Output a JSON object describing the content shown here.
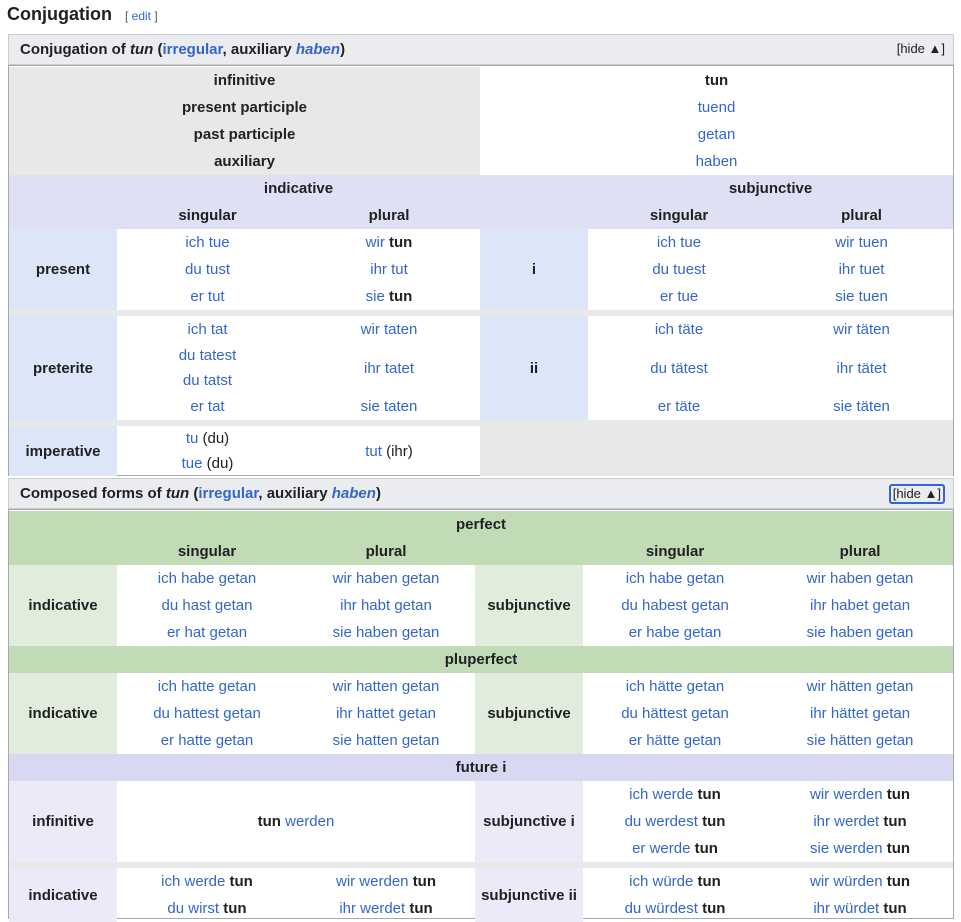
{
  "section": {
    "title": "Conjugation",
    "edit": "edit",
    "open": "[",
    "close": "]"
  },
  "box1": {
    "title_pre": "Conjugation of ",
    "verb": "tun",
    "paren_open": " (",
    "class": "irregular",
    "comma": ", auxiliary ",
    "aux": "haben",
    "paren_close": ")",
    "hide": "[hide ▲]",
    "nonfinite": [
      {
        "label": "infinitive",
        "value": "tun"
      },
      {
        "label": "present participle",
        "value": "tuend"
      },
      {
        "label": "past participle",
        "value": "getan"
      },
      {
        "label": "auxiliary",
        "value": "haben"
      }
    ],
    "mood_ind": "indicative",
    "mood_sub": "subjunctive",
    "singular": "singular",
    "plural": "plural",
    "present": {
      "label": "present",
      "sub": "i",
      "ind_sg": [
        "ich tue",
        "du tust",
        "er tut"
      ],
      "ind_pl": [
        [
          "wir ",
          "tun"
        ],
        [
          "ihr tut",
          ""
        ],
        [
          "sie ",
          "tun"
        ]
      ],
      "sub_sg": [
        "ich tue",
        "du tuest",
        "er tue"
      ],
      "sub_pl": [
        "wir tuen",
        "ihr tuet",
        "sie tuen"
      ]
    },
    "preterite": {
      "label": "preterite",
      "sub": "ii",
      "ind_sg": [
        "ich tat",
        "du tatest",
        "du tatst",
        "er tat"
      ],
      "ind_pl": [
        "wir taten",
        "ihr tatet",
        "sie taten"
      ],
      "sub_sg": [
        "ich täte",
        "du tätest",
        "er täte"
      ],
      "sub_pl": [
        "wir täten",
        "ihr tätet",
        "sie täten"
      ]
    },
    "imperative": {
      "label": "imperative",
      "sg1": "tu",
      "sg1p": "(du)",
      "sg2": "tue",
      "sg2p": "(du)",
      "pl": "tut",
      "plp": "(ihr)"
    }
  },
  "box2": {
    "title_pre": "Composed forms of ",
    "verb": "tun",
    "paren_open": " (",
    "class": "irregular",
    "comma": ", auxiliary ",
    "aux": "haben",
    "paren_close": ")",
    "hide": "[hide ▲]",
    "perfect": "perfect",
    "pluperfect": "pluperfect",
    "future": "future i",
    "singular": "singular",
    "plural": "plural",
    "indicative": "indicative",
    "subjunctive": "subjunctive",
    "perf": {
      "ind_sg": [
        "ich habe getan",
        "du hast getan",
        "er hat getan"
      ],
      "ind_pl": [
        "wir haben getan",
        "ihr habt getan",
        "sie haben getan"
      ],
      "sub_sg": [
        "ich habe getan",
        "du habest getan",
        "er habe getan"
      ],
      "sub_pl": [
        "wir haben getan",
        "ihr habet getan",
        "sie haben getan"
      ]
    },
    "plup": {
      "ind_sg": [
        "ich hatte getan",
        "du hattest getan",
        "er hatte getan"
      ],
      "ind_pl": [
        "wir hatten getan",
        "ihr hattet getan",
        "sie hatten getan"
      ],
      "sub_sg": [
        "ich hätte getan",
        "du hättest getan",
        "er hätte getan"
      ],
      "sub_pl": [
        "wir hätten getan",
        "ihr hättet getan",
        "sie hätten getan"
      ]
    },
    "fut": {
      "inf_label": "infinitive",
      "inf_verb": "tun",
      "inf_aux": " werden",
      "sub1_label": "subjunctive i",
      "sub2_label": "subjunctive ii",
      "ind_label": "indicative",
      "sub1_sg": [
        [
          "ich werde ",
          "tun"
        ],
        [
          "du werdest ",
          "tun"
        ],
        [
          "er werde ",
          "tun"
        ]
      ],
      "sub1_pl": [
        [
          "wir werden ",
          "tun"
        ],
        [
          "ihr werdet ",
          "tun"
        ],
        [
          "sie werden ",
          "tun"
        ]
      ],
      "ind_sg": [
        [
          "ich werde ",
          "tun"
        ],
        [
          "du wirst ",
          "tun"
        ]
      ],
      "ind_pl": [
        [
          "wir werden ",
          "tun"
        ],
        [
          "ihr werdet ",
          "tun"
        ]
      ],
      "sub2_sg": [
        [
          "ich würde ",
          "tun"
        ],
        [
          "du würdest ",
          "tun"
        ]
      ],
      "sub2_pl": [
        [
          "wir würden ",
          "tun"
        ],
        [
          "ihr würdet ",
          "tun"
        ]
      ]
    }
  }
}
